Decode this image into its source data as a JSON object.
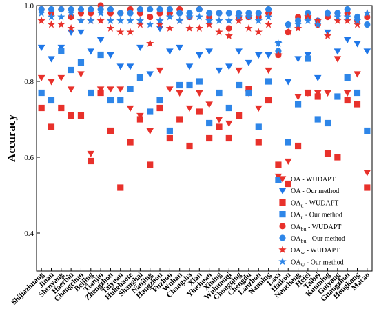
{
  "chart_data": {
    "type": "scatter",
    "title": "",
    "xlabel": "",
    "ylabel": "Accuracy",
    "ylim": [
      0.3,
      1.0
    ],
    "yticks": [
      0.4,
      0.6,
      0.8,
      1.0
    ],
    "legend_position": "bottom-right",
    "categories": [
      "Shijiazhuang",
      "Jinan",
      "Shenyang",
      "Haerbin",
      "Changchun",
      "Beijing",
      "Tianjin",
      "Zhengzhou",
      "Taiyuan",
      "Huhehaote",
      "Shanghai",
      "Nanjing",
      "Hangzhou",
      "Fuzhou",
      "Wuhan",
      "Changsha",
      "Xian",
      "Yinchuan",
      "Xining",
      "Wulumuqi",
      "Chongqing",
      "Chengdu",
      "Lanzhou",
      "Nanning",
      "Lasa",
      "Haikou",
      "Nanchang",
      "Hefei",
      "Taibei",
      "Kunming",
      "Guiyang",
      "Guangzhou",
      "Hongkong",
      "Macao"
    ],
    "series": [
      {
        "name": "OA - WUDAPT",
        "legend_main": "OA",
        "legend_sub": "",
        "legend_tail": " - WUDAPT",
        "marker": "triangle-down",
        "color": "#e8312b",
        "values": [
          0.81,
          0.8,
          0.81,
          0.78,
          0.82,
          0.61,
          0.78,
          0.78,
          0.78,
          0.73,
          0.71,
          0.67,
          0.83,
          0.78,
          0.77,
          0.73,
          0.77,
          0.74,
          0.7,
          0.69,
          0.83,
          0.77,
          0.73,
          0.83,
          0.55,
          0.59,
          0.76,
          0.77,
          0.77,
          0.77,
          0.86,
          0.77,
          0.82,
          0.56
        ]
      },
      {
        "name": "OA - Our method",
        "legend_main": "OA",
        "legend_sub": "",
        "legend_tail": " - Our method",
        "marker": "triangle-down",
        "color": "#1f77e8",
        "values": [
          0.89,
          0.86,
          0.89,
          0.93,
          0.93,
          0.88,
          0.91,
          0.87,
          0.84,
          0.84,
          0.89,
          0.82,
          0.94,
          0.88,
          0.89,
          0.84,
          0.87,
          0.88,
          0.83,
          0.84,
          0.88,
          0.85,
          0.87,
          0.87,
          0.9,
          0.8,
          0.86,
          0.87,
          0.81,
          0.93,
          0.88,
          0.91,
          0.9,
          0.88
        ]
      },
      {
        "name": "OAu - WUDAPT",
        "legend_main": "OA",
        "legend_sub": "u",
        "legend_tail": " - WUDAPT",
        "marker": "square",
        "color": "#e8312b",
        "values": [
          0.73,
          0.68,
          0.73,
          0.71,
          0.71,
          0.59,
          0.77,
          0.67,
          0.52,
          0.64,
          0.7,
          0.58,
          0.73,
          0.65,
          0.7,
          0.63,
          0.72,
          0.65,
          0.68,
          0.65,
          0.71,
          0.78,
          0.64,
          0.75,
          0.58,
          0.53,
          0.63,
          0.77,
          0.76,
          0.61,
          0.6,
          0.75,
          0.74,
          0.52
        ]
      },
      {
        "name": "OAu - Our method",
        "legend_main": "OA",
        "legend_sub": "u",
        "legend_tail": " - Our method",
        "marker": "square",
        "color": "#2e86e8",
        "values": [
          0.77,
          0.75,
          0.88,
          0.83,
          0.85,
          0.77,
          0.87,
          0.75,
          0.75,
          0.78,
          0.81,
          0.72,
          0.75,
          0.67,
          0.79,
          0.79,
          0.8,
          0.69,
          0.77,
          0.73,
          0.79,
          0.77,
          0.68,
          0.8,
          0.54,
          0.64,
          0.74,
          0.86,
          0.7,
          0.69,
          0.76,
          0.81,
          0.77,
          0.67
        ]
      },
      {
        "name": "OAbu - WUDAPT",
        "legend_main": "OA",
        "legend_sub": "bu",
        "legend_tail": " - WUDAPT",
        "marker": "circle",
        "color": "#e8312b",
        "values": [
          0.99,
          0.98,
          0.99,
          0.97,
          0.98,
          0.98,
          1.0,
          0.98,
          0.98,
          0.99,
          0.98,
          0.97,
          0.98,
          0.98,
          0.99,
          0.97,
          0.99,
          0.97,
          0.98,
          0.94,
          0.97,
          0.97,
          0.97,
          0.98,
          0.87,
          0.93,
          0.97,
          0.97,
          0.95,
          0.97,
          0.98,
          0.98,
          0.96,
          0.97
        ]
      },
      {
        "name": "OAbu - Our method",
        "legend_main": "OA",
        "legend_sub": "bu",
        "legend_tail": " - Our method",
        "marker": "circle",
        "color": "#2e86e8",
        "values": [
          0.99,
          0.99,
          0.99,
          0.99,
          0.99,
          0.99,
          0.99,
          0.99,
          0.98,
          0.98,
          0.99,
          0.99,
          0.99,
          0.99,
          0.98,
          0.98,
          0.99,
          0.98,
          0.98,
          0.98,
          0.98,
          0.98,
          0.98,
          0.99,
          0.88,
          0.95,
          0.96,
          0.98,
          0.96,
          0.98,
          0.98,
          0.99,
          0.97,
          0.95
        ]
      },
      {
        "name": "OAw - WUDAPT",
        "legend_main": "OA",
        "legend_sub": "w",
        "legend_tail": " - WUDAPT",
        "marker": "star",
        "color": "#e8312b",
        "values": [
          0.96,
          0.95,
          0.95,
          0.94,
          0.96,
          0.96,
          0.96,
          0.94,
          0.93,
          0.93,
          0.95,
          0.9,
          0.95,
          0.94,
          0.96,
          0.94,
          0.94,
          0.95,
          0.93,
          0.92,
          0.96,
          0.94,
          0.93,
          0.95,
          0.87,
          0.93,
          0.94,
          0.97,
          0.96,
          0.92,
          0.96,
          0.96,
          0.95,
          0.98
        ]
      },
      {
        "name": "OAw - Our method",
        "legend_main": "OA",
        "legend_sub": "w",
        "legend_tail": " - Our method",
        "marker": "star",
        "color": "#2e86e8",
        "values": [
          0.98,
          0.97,
          0.97,
          0.98,
          0.96,
          0.96,
          0.98,
          0.96,
          0.96,
          0.96,
          0.96,
          0.95,
          0.96,
          0.97,
          0.96,
          0.97,
          0.97,
          0.96,
          0.96,
          0.96,
          0.97,
          0.97,
          0.96,
          0.97,
          0.9,
          0.95,
          0.95,
          0.96,
          0.95,
          0.98,
          0.97,
          0.97,
          0.96,
          0.98
        ]
      }
    ]
  }
}
